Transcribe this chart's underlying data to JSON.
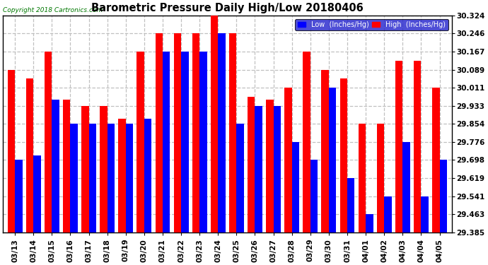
{
  "title": "Barometric Pressure Daily High/Low 20180406",
  "copyright": "Copyright 2018 Cartronics.com",
  "legend_low": "Low  (Inches/Hg)",
  "legend_high": "High  (Inches/Hg)",
  "dates": [
    "03/13",
    "03/14",
    "03/15",
    "03/16",
    "03/17",
    "03/18",
    "03/19",
    "03/20",
    "03/21",
    "03/22",
    "03/23",
    "03/24",
    "03/25",
    "03/26",
    "03/27",
    "03/28",
    "03/29",
    "03/30",
    "03/31",
    "04/01",
    "04/02",
    "04/03",
    "04/04",
    "04/05"
  ],
  "low_values": [
    29.698,
    29.717,
    29.96,
    29.854,
    29.854,
    29.854,
    29.854,
    29.876,
    30.167,
    30.167,
    30.167,
    30.246,
    29.854,
    29.933,
    29.933,
    29.776,
    29.698,
    30.011,
    29.619,
    29.463,
    29.541,
    29.776,
    29.541,
    29.698
  ],
  "high_values": [
    30.089,
    30.05,
    30.167,
    29.96,
    29.933,
    29.933,
    29.876,
    30.167,
    30.246,
    30.246,
    30.246,
    30.324,
    30.246,
    29.971,
    29.96,
    30.011,
    30.167,
    30.089,
    30.05,
    29.854,
    29.854,
    30.128,
    30.128,
    30.011
  ],
  "ymin": 29.385,
  "ymax": 30.324,
  "yticks": [
    29.385,
    29.463,
    29.541,
    29.619,
    29.698,
    29.776,
    29.854,
    29.933,
    30.011,
    30.089,
    30.167,
    30.246,
    30.324
  ],
  "low_color": "#0000ff",
  "high_color": "#ff0000",
  "bg_color": "#ffffff",
  "grid_color": "#c0c0c0",
  "title_color": "#000000",
  "bar_width": 0.4,
  "figwidth": 6.9,
  "figheight": 3.75,
  "dpi": 100
}
